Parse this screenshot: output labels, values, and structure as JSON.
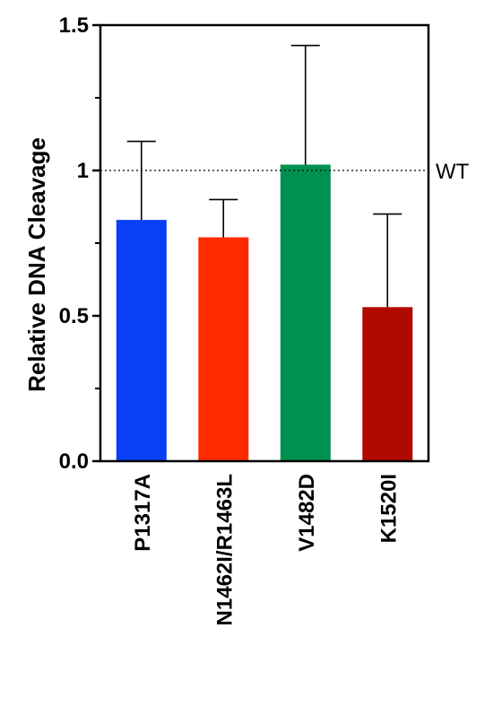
{
  "chart_data": {
    "type": "bar",
    "title": "",
    "xlabel": "",
    "ylabel": "Relative DNA Cleavage",
    "ylim": [
      0,
      1.5
    ],
    "y_ticks": [
      0,
      0.5,
      1,
      1.5
    ],
    "y_tick_labels": [
      "0.0",
      "0.5",
      "1",
      "1.5"
    ],
    "y_minor_ticks": [
      0.25,
      0.75,
      1.25
    ],
    "categories": [
      "P1317A",
      "N1462I/R1463L",
      "V1482D",
      "K1520I"
    ],
    "values": [
      0.83,
      0.77,
      1.02,
      0.53
    ],
    "error_upper": [
      1.1,
      0.9,
      1.43,
      0.85
    ],
    "colors": [
      "#0a3ff5",
      "#ff2a00",
      "#009150",
      "#b00a00"
    ],
    "reference_line": {
      "value": 1.0,
      "label": "WT",
      "style": "dotted"
    },
    "grid": false,
    "legend": "none"
  }
}
